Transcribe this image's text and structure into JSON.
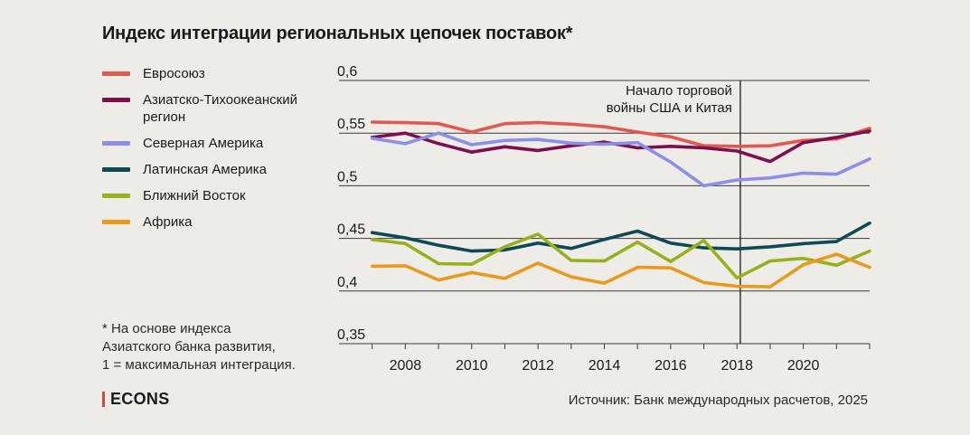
{
  "title": "Индекс интеграции региональных цепочек поставок*",
  "note": [
    "* На основе индекса",
    "Азиатского банка развития,",
    "1 = максимальная интеграция."
  ],
  "logo": "ECONS",
  "source": "Источник: Банк международных расчетов, 2025",
  "chart_data": {
    "type": "line",
    "title": "Индекс интеграции региональных цепочек поставок*",
    "xlabel": "",
    "ylabel": "",
    "x": [
      2007,
      2008,
      2009,
      2010,
      2011,
      2012,
      2013,
      2014,
      2015,
      2016,
      2017,
      2018,
      2019,
      2020,
      2021,
      2022
    ],
    "xlim": [
      2006,
      2022
    ],
    "ylim": [
      0.35,
      0.6
    ],
    "x_ticks": [
      2008,
      2010,
      2012,
      2014,
      2016,
      2018,
      2020
    ],
    "x_tick_labels": [
      "2008",
      "2010",
      "2012",
      "2014",
      "2016",
      "2018",
      "2020"
    ],
    "y_ticks": [
      0.35,
      0.4,
      0.45,
      0.5,
      0.55,
      0.6
    ],
    "y_tick_labels": [
      "0,35",
      "0,4",
      "0,45",
      "0,5",
      "0,55",
      "0,6"
    ],
    "grid": "horizontal",
    "legend": "left",
    "series": [
      {
        "name": "Евросоюз",
        "color": "#e05a4f",
        "values": [
          0.5605,
          0.56,
          0.559,
          0.551,
          0.559,
          0.56,
          0.5585,
          0.556,
          0.551,
          0.5465,
          0.538,
          0.5375,
          0.538,
          0.543,
          0.5445,
          0.5545
        ]
      },
      {
        "name": "Азиатско-Тихоокеанский регион",
        "color": "#7a1050",
        "values": [
          0.546,
          0.55,
          0.54,
          0.532,
          0.537,
          0.5335,
          0.538,
          0.5415,
          0.536,
          0.5375,
          0.536,
          0.533,
          0.523,
          0.541,
          0.546,
          0.552
        ]
      },
      {
        "name": "Северная Америка",
        "color": "#8a8fe8",
        "values": [
          0.545,
          0.54,
          0.55,
          0.539,
          0.543,
          0.544,
          0.5405,
          0.5395,
          0.541,
          0.5225,
          0.5,
          0.5055,
          0.5075,
          0.512,
          0.511,
          0.5255
        ]
      },
      {
        "name": "Латинская Америка",
        "color": "#0e4a54",
        "values": [
          0.4555,
          0.4505,
          0.4435,
          0.438,
          0.439,
          0.4455,
          0.4405,
          0.449,
          0.457,
          0.4455,
          0.441,
          0.44,
          0.442,
          0.445,
          0.447,
          0.4645
        ]
      },
      {
        "name": "Ближний Восток",
        "color": "#9aae1e",
        "values": [
          0.449,
          0.445,
          0.426,
          0.4255,
          0.442,
          0.454,
          0.429,
          0.4285,
          0.4465,
          0.428,
          0.448,
          0.4125,
          0.4285,
          0.431,
          0.4245,
          0.438
        ]
      },
      {
        "name": "Африка",
        "color": "#e89a1e",
        "values": [
          0.4235,
          0.424,
          0.4105,
          0.4175,
          0.412,
          0.4265,
          0.4135,
          0.4075,
          0.4225,
          0.422,
          0.408,
          0.4045,
          0.404,
          0.425,
          0.435,
          0.4225
        ]
      }
    ],
    "annotations": [
      {
        "x": 2018.1,
        "text_lines": [
          "Начало торговой",
          "войны США и Китая"
        ]
      }
    ]
  }
}
